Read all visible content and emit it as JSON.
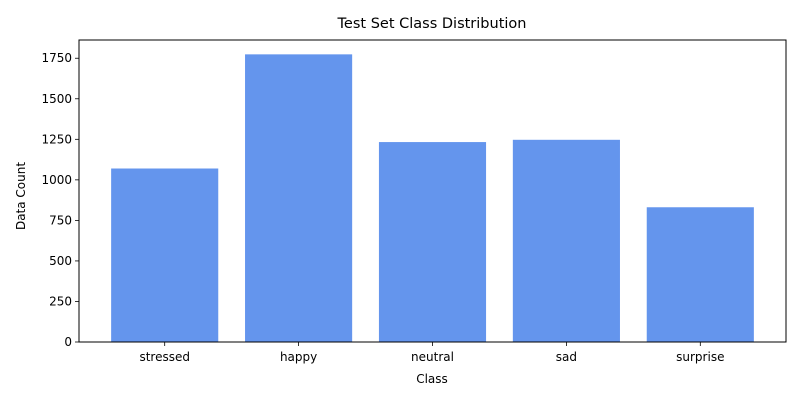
{
  "chart_data": {
    "type": "bar",
    "title": "Test Set Class Distribution",
    "xlabel": "Class",
    "ylabel": "Data Count",
    "categories": [
      "stressed",
      "happy",
      "neutral",
      "sad",
      "surprise"
    ],
    "values": [
      1070,
      1774,
      1233,
      1247,
      831
    ],
    "ylim": [
      0,
      1862.5
    ],
    "yticks": [
      0,
      250,
      500,
      750,
      1000,
      1250,
      1500,
      1750
    ],
    "grid": false,
    "bar_color": "#6495ed"
  }
}
